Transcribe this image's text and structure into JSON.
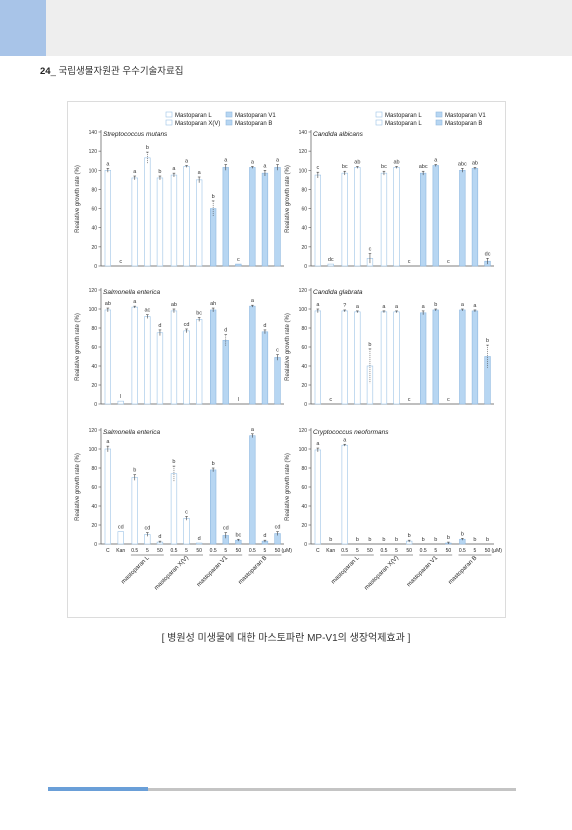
{
  "header": {
    "page_number": "24",
    "sep": "_",
    "title": "국립생물자원관 우수기술자료집"
  },
  "caption": "[ 병원성 미생물에 대한 마스토파란 MP-V1의 생장억제효과 ]",
  "colors": {
    "light_bar_fill": "#ffffff",
    "light_bar_edge": "#9cc3e6",
    "dark_bar_fill": "#b7d6f2",
    "dark_bar_edge": "#8fb8e0",
    "header_band": "#eeeeee",
    "header_accent": "#a8c4e8"
  },
  "chart_data": [
    {
      "type": "bar",
      "title": "Streptococcus mutans",
      "ylabel": "Realative growth rate (%)",
      "ylim": [
        0,
        140
      ],
      "yticks": [
        0,
        20,
        40,
        60,
        80,
        100,
        120,
        140
      ],
      "legend_col1": [
        "Mastoparan L",
        "Mastoparan X(V)"
      ],
      "legend_col2": [
        "Mastoparan V1",
        "Mastoparan B"
      ],
      "values": [
        100,
        0,
        92,
        113,
        92,
        95,
        104,
        90,
        60,
        103,
        2,
        103,
        97,
        103
      ],
      "errors": [
        2,
        0,
        2,
        6,
        2,
        2,
        1,
        3,
        8,
        3,
        0,
        1,
        3,
        3
      ],
      "letters": [
        "a",
        "c",
        "a",
        "b",
        "b",
        "a",
        "a",
        "a",
        "b",
        "a",
        "c",
        "a",
        "a",
        "a"
      ]
    },
    {
      "type": "bar",
      "title": "Candida albicans",
      "ylabel": "Realative growth rate (%)",
      "ylim": [
        0,
        140
      ],
      "yticks": [
        0,
        20,
        40,
        60,
        80,
        100,
        120,
        140
      ],
      "legend_col1": [
        "Mastoparan L",
        "Mastoparan L"
      ],
      "legend_col2": [
        "Mastoparan V1",
        "Mastoparan B"
      ],
      "values": [
        95,
        2,
        97,
        103,
        8,
        97,
        103,
        0,
        97,
        105,
        0,
        100,
        102,
        5
      ],
      "errors": [
        3,
        0,
        2,
        1,
        5,
        2,
        1,
        0,
        2,
        1,
        0,
        2,
        1,
        3
      ],
      "letters": [
        "c",
        "dc",
        "bc",
        "ab",
        "c",
        "bc",
        "ab",
        "c",
        "abc",
        "a",
        "c",
        "abc",
        "ab",
        "dc"
      ]
    },
    {
      "type": "bar",
      "title": "Salmonella enterica",
      "ylabel": "Realative growth rate (%)",
      "ylim": [
        0,
        120
      ],
      "yticks": [
        0,
        20,
        40,
        60,
        80,
        100,
        120
      ],
      "values": [
        99,
        3,
        102,
        92,
        75,
        98,
        77,
        89,
        99,
        67,
        0,
        103,
        76,
        49
      ],
      "errors": [
        2,
        0,
        1,
        2,
        3,
        2,
        2,
        2,
        2,
        6,
        0,
        1,
        2,
        3
      ],
      "letters": [
        "ab",
        "l",
        "a",
        "ac",
        "d",
        "ab",
        "cd",
        "bc",
        "ah",
        "d",
        "l",
        "a",
        "d",
        "c"
      ]
    },
    {
      "type": "bar",
      "title": "Candida glabrata",
      "ylabel": "Realative growth rate (%)",
      "ylim": [
        0,
        120
      ],
      "yticks": [
        0,
        20,
        40,
        60,
        80,
        100,
        120
      ],
      "values": [
        98,
        0,
        98,
        97,
        40,
        97,
        97,
        0,
        96,
        99,
        0,
        99,
        98,
        50
      ],
      "errors": [
        2,
        0,
        1,
        1,
        18,
        1,
        1,
        0,
        2,
        1,
        0,
        1,
        1,
        12
      ],
      "letters": [
        "a",
        "c",
        "?",
        "a",
        "b",
        "a",
        "a",
        "c",
        "a",
        "b",
        "c",
        "a",
        "a",
        "b"
      ]
    },
    {
      "type": "bar",
      "title": "Salmonella enterica",
      "ylabel": "Realative growth rate (%)",
      "ylim": [
        0,
        120
      ],
      "yticks": [
        0,
        20,
        40,
        60,
        80,
        100,
        120
      ],
      "values": [
        100,
        13,
        70,
        10,
        2,
        74,
        27,
        1,
        78,
        9,
        4,
        114,
        3,
        11
      ],
      "errors": [
        3,
        0,
        3,
        2,
        1,
        8,
        2,
        0,
        2,
        3,
        1,
        2,
        1,
        2
      ],
      "letters": [
        "a",
        "cd",
        "b",
        "cd",
        "d",
        "b",
        "c",
        "d",
        "b",
        "cd",
        "bc",
        "a",
        "d",
        "cd"
      ],
      "categories": [
        "C",
        "Kan",
        "0.5",
        "5",
        "50",
        "0.5",
        "5",
        "50",
        "0.5",
        "5",
        "50",
        "0.5",
        "5",
        "50"
      ],
      "x_unit": "(μM)",
      "groups": [
        "mastoparan L",
        "mastoparan X(V)",
        "mastoparan V1",
        "mastoparan B"
      ]
    },
    {
      "type": "bar",
      "title": "Cryptococcus neoformans",
      "ylabel": "Realative growth rate (%)",
      "ylim": [
        0,
        120
      ],
      "yticks": [
        0,
        20,
        40,
        60,
        80,
        100,
        120
      ],
      "values": [
        99,
        0,
        104,
        0,
        0,
        0,
        0,
        3,
        0,
        0,
        1,
        5,
        0,
        0
      ],
      "errors": [
        2,
        0,
        1,
        0,
        0,
        0,
        0,
        1,
        0,
        0,
        1,
        1,
        0,
        0
      ],
      "letters": [
        "a",
        "b",
        "a",
        "b",
        "b",
        "b",
        "b",
        "b",
        "b",
        "b",
        "b",
        "b",
        "b",
        "b"
      ],
      "categories": [
        "C",
        "Kan",
        "0.5",
        "5",
        "50",
        "0.5",
        "5",
        "50",
        "0.5",
        "5",
        "50",
        "0.5",
        "5",
        "50"
      ],
      "x_unit": "(μM)",
      "groups": [
        "mastoparan L",
        "mastoparan X(V)",
        "mastoparan V1",
        "mastoparan B"
      ]
    }
  ]
}
